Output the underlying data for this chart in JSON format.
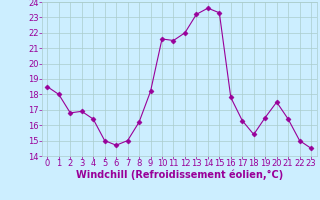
{
  "x": [
    0,
    1,
    2,
    3,
    4,
    5,
    6,
    7,
    8,
    9,
    10,
    11,
    12,
    13,
    14,
    15,
    16,
    17,
    18,
    19,
    20,
    21,
    22,
    23
  ],
  "y": [
    18.5,
    18.0,
    16.8,
    16.9,
    16.4,
    15.0,
    14.7,
    15.0,
    16.2,
    18.2,
    21.6,
    21.5,
    22.0,
    23.2,
    23.6,
    23.3,
    17.8,
    16.3,
    15.4,
    16.5,
    17.5,
    16.4,
    15.0,
    14.5
  ],
  "ylim": [
    14,
    24
  ],
  "xlim": [
    -0.5,
    23.5
  ],
  "yticks": [
    14,
    15,
    16,
    17,
    18,
    19,
    20,
    21,
    22,
    23,
    24
  ],
  "xticks": [
    0,
    1,
    2,
    3,
    4,
    5,
    6,
    7,
    8,
    9,
    10,
    11,
    12,
    13,
    14,
    15,
    16,
    17,
    18,
    19,
    20,
    21,
    22,
    23
  ],
  "xlabel": "Windchill (Refroidissement éolien,°C)",
  "line_color": "#990099",
  "marker": "D",
  "marker_size": 2.5,
  "bg_color": "#cceeff",
  "grid_color": "#aacccc",
  "tick_color": "#990099",
  "label_color": "#990099",
  "tick_fontsize": 6,
  "xlabel_fontsize": 7
}
